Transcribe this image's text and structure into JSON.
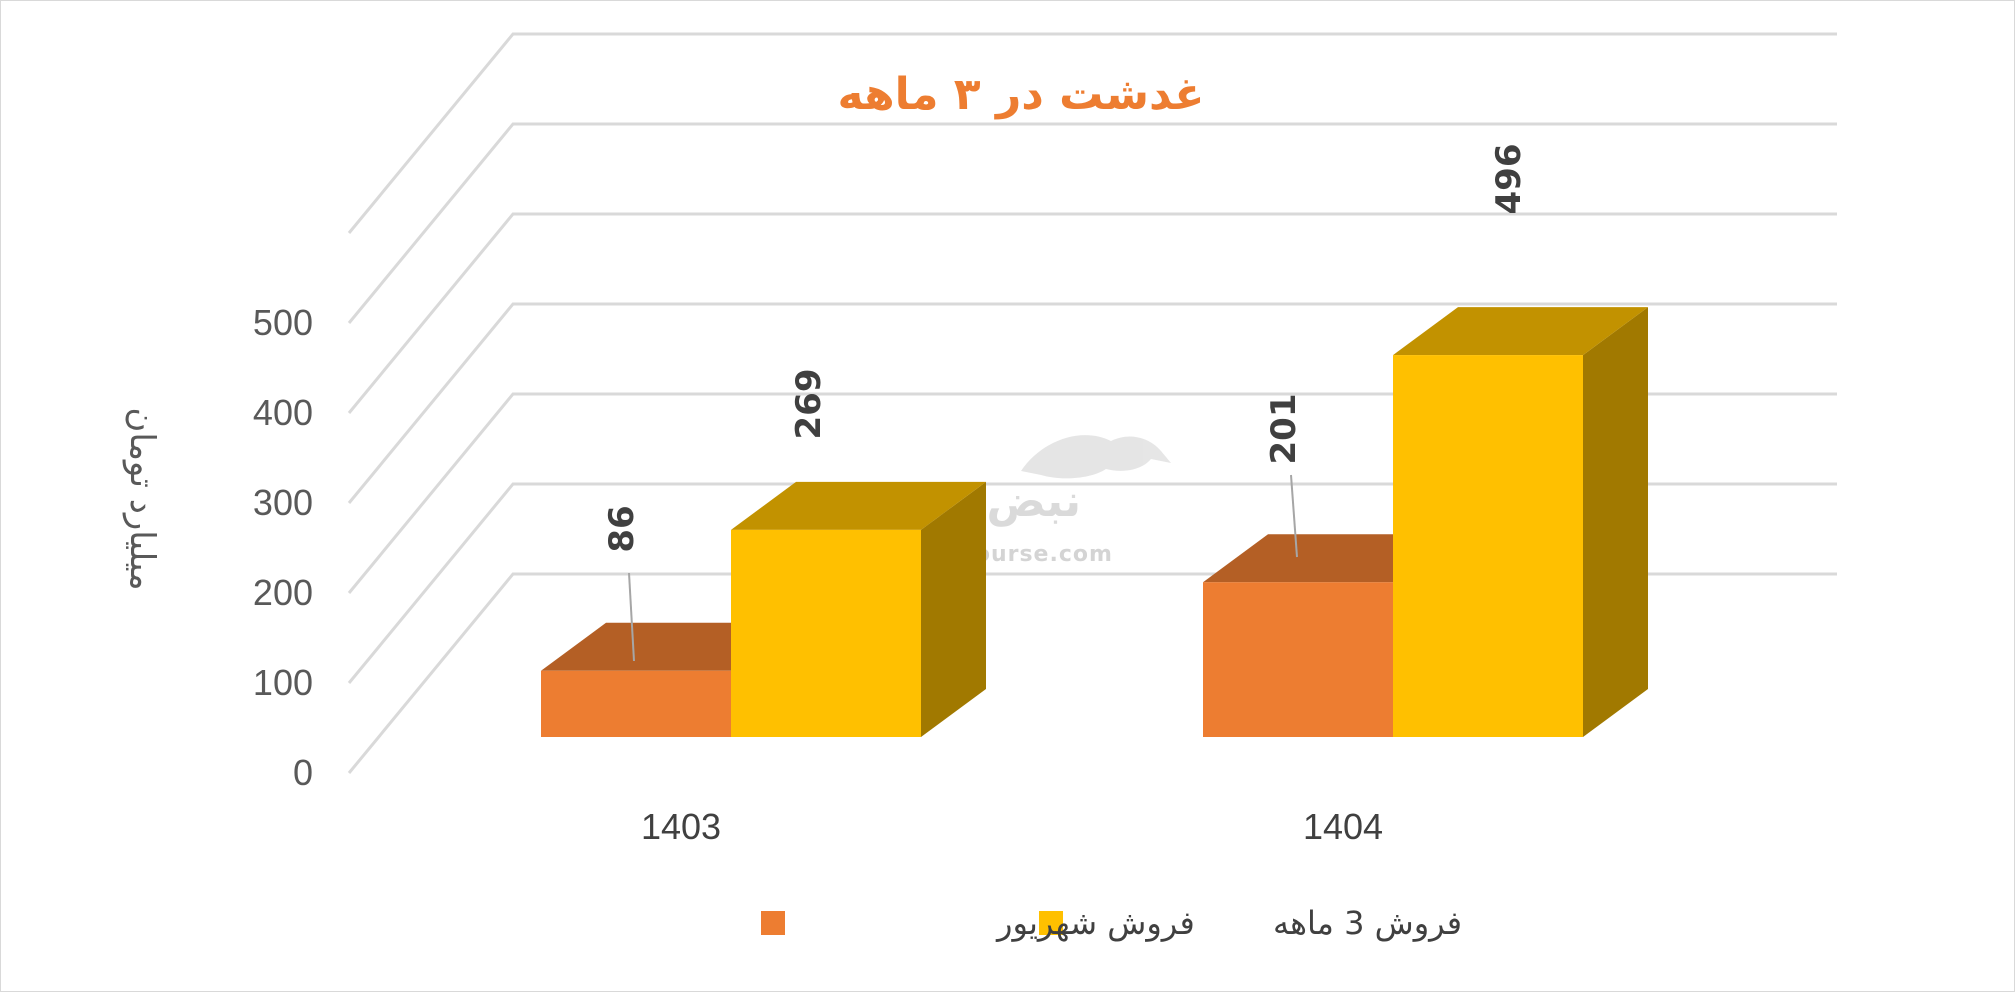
{
  "chart_data": {
    "type": "bar",
    "title": "غدشت در ۳ ماهه",
    "ylabel": "میلیارد تومان",
    "xlabel": "",
    "categories": [
      "1403",
      "1404"
    ],
    "series": [
      {
        "name": "فروش شهریور",
        "values": [
          86,
          201
        ],
        "color": "#ed7d31"
      },
      {
        "name": "فروش 3  ماهه",
        "values": [
          269,
          496
        ],
        "color": "#ffc000"
      }
    ],
    "ylim": [
      0,
      600
    ],
    "yticks": [
      "0",
      "100",
      "200",
      "300",
      "400",
      "500"
    ],
    "data_labels": [
      "86",
      "201",
      "269",
      "496"
    ],
    "grid": true,
    "legend_position": "bottom",
    "style": "3d-clustered-column"
  },
  "watermark": {
    "logo_text": "نبض بورس",
    "url": "nabzebourse.com"
  }
}
